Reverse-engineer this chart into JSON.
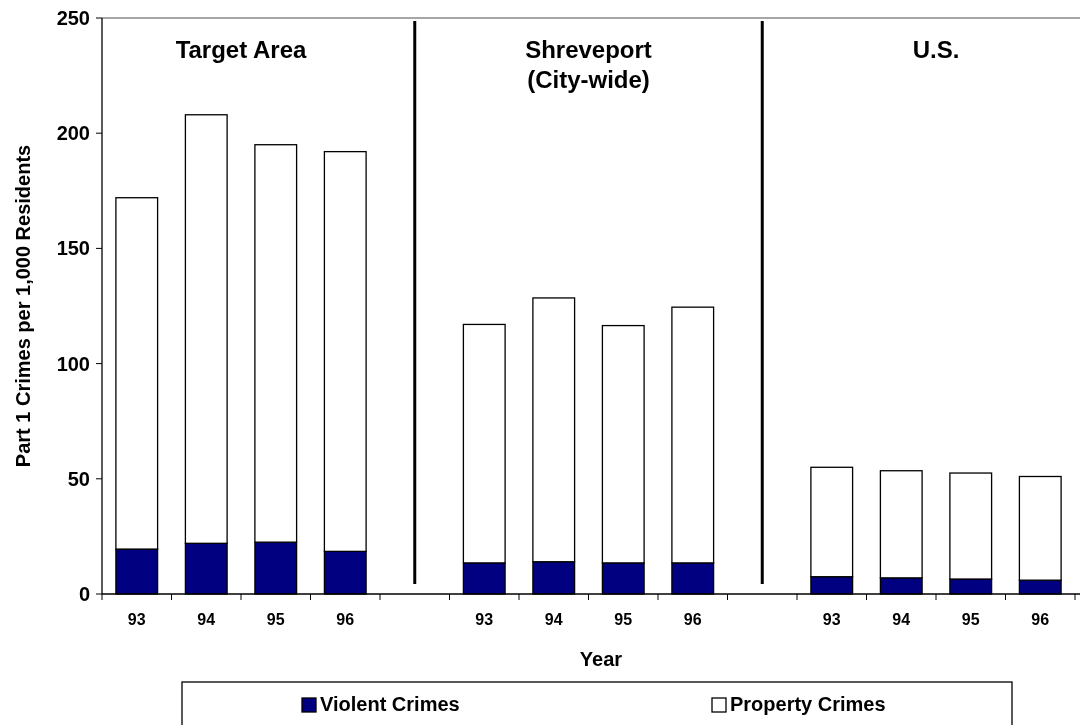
{
  "chart_data": {
    "type": "bar",
    "stacked": true,
    "xlabel": "Year",
    "ylabel": "Part 1 Crimes per 1,000 Residents",
    "categories": [
      "93",
      "94",
      "95",
      "96",
      null,
      "93",
      "94",
      "95",
      "96",
      null,
      "93",
      "94",
      "95",
      "96"
    ],
    "series": [
      {
        "name": "Violent Crimes",
        "color": "#000080",
        "values": [
          19.5,
          22,
          22.5,
          18.5,
          null,
          13.5,
          14,
          13.5,
          13.5,
          null,
          7.5,
          7,
          6.5,
          6
        ]
      },
      {
        "name": "Property Crimes",
        "color": "#ffffff",
        "values": [
          152.5,
          186,
          172.5,
          173.5,
          null,
          103.5,
          114.5,
          103,
          111,
          null,
          47.5,
          46.5,
          46,
          45
        ]
      }
    ],
    "annotations": [
      "Target Area",
      "Shreveport\n(City-wide)",
      "U.S."
    ],
    "ylim": [
      0,
      250
    ],
    "yticks": [
      0,
      50,
      100,
      150,
      200,
      250
    ],
    "legend": "bottom"
  }
}
